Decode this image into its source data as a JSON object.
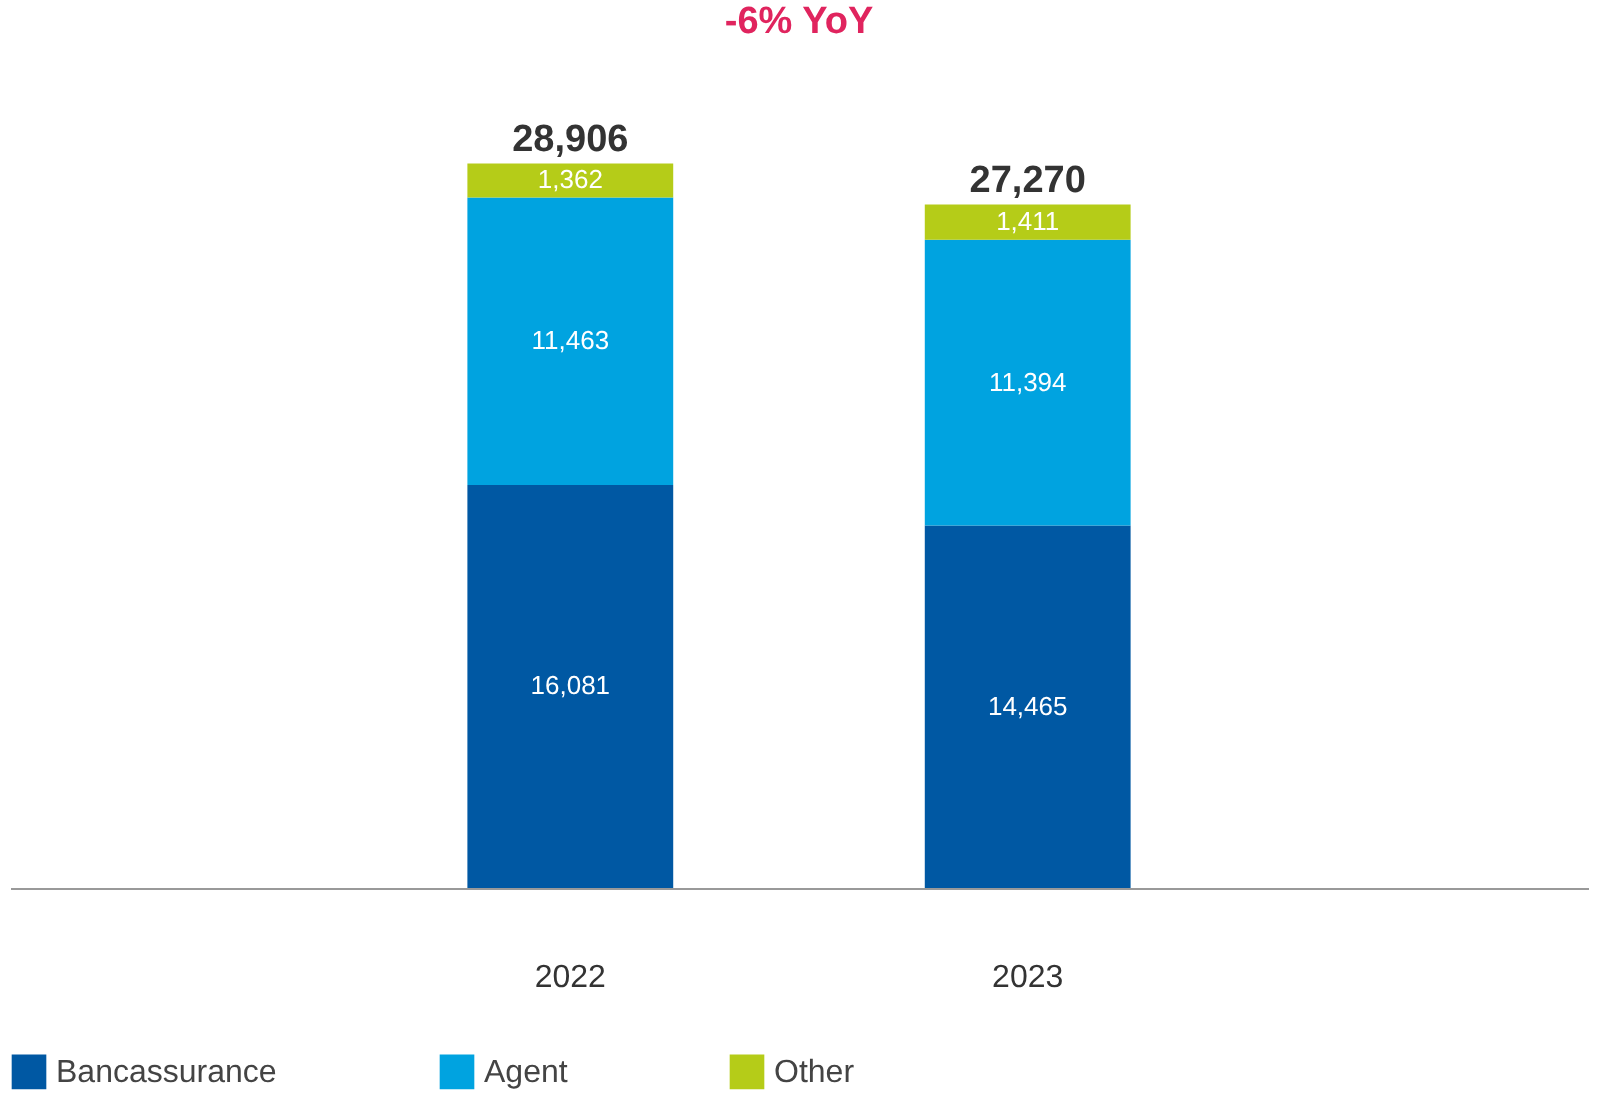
{
  "chart_data": {
    "type": "bar",
    "title": "-6% YoY",
    "categories": [
      "2022",
      "2023"
    ],
    "stacked": true,
    "legend": "bottom",
    "series": [
      {
        "name": "Bancassurance",
        "color": "#0058a3",
        "values": [
          16081,
          14465
        ],
        "value_labels": [
          "16,081",
          "14,465"
        ]
      },
      {
        "name": "Agent",
        "color": "#00a3e0",
        "values": [
          11463,
          11394
        ],
        "value_labels": [
          "11,463",
          "11,394"
        ]
      },
      {
        "name": "Other",
        "color": "#b5cc18",
        "values": [
          1362,
          1411
        ],
        "value_labels": [
          "1,362",
          "1,411"
        ]
      }
    ],
    "totals": [
      "28,906",
      "27,270"
    ]
  }
}
